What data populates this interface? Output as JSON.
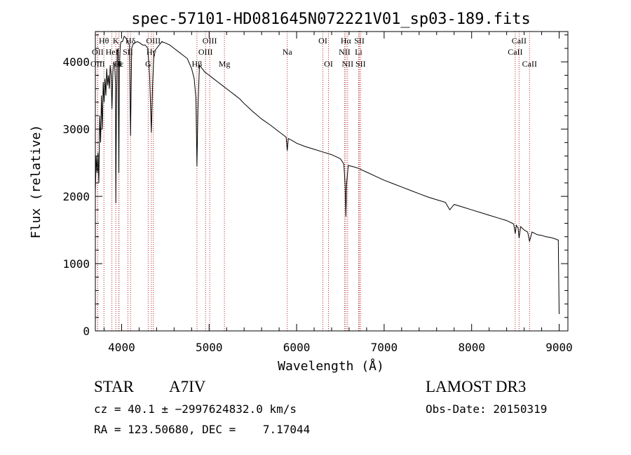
{
  "chart_data": {
    "type": "line",
    "title": "spec-57101-HD081645N072221V01_sp03-189.fits",
    "xlabel": "Wavelength (Å)",
    "ylabel": "Flux (relative)",
    "xlim": [
      3700,
      9100
    ],
    "ylim": [
      0,
      4450
    ],
    "x_ticks": [
      4000,
      5000,
      6000,
      7000,
      8000,
      9000
    ],
    "x_tick_labels": [
      "4000",
      "5000",
      "6000",
      "7000",
      "8000",
      "9000"
    ],
    "y_ticks": [
      0,
      1000,
      2000,
      3000,
      4000
    ],
    "y_tick_labels": [
      "0",
      "1000",
      "2000",
      "3000",
      "4000"
    ],
    "grid": false,
    "series": [
      {
        "name": "flux",
        "x": [
          3700,
          3710,
          3720,
          3730,
          3740,
          3750,
          3760,
          3770,
          3780,
          3790,
          3800,
          3810,
          3820,
          3830,
          3840,
          3850,
          3860,
          3870,
          3880,
          3890,
          3900,
          3910,
          3920,
          3930,
          3934,
          3940,
          3950,
          3960,
          3968,
          3975,
          3985,
          3995,
          4010,
          4030,
          4050,
          4070,
          4090,
          4102,
          4115,
          4130,
          4150,
          4180,
          4210,
          4240,
          4270,
          4300,
          4320,
          4340,
          4355,
          4370,
          4400,
          4430,
          4460,
          4500,
          4550,
          4600,
          4650,
          4700,
          4750,
          4800,
          4830,
          4850,
          4861,
          4872,
          4890,
          4920,
          4950,
          5000,
          5050,
          5100,
          5150,
          5200,
          5250,
          5300,
          5350,
          5400,
          5450,
          5500,
          5600,
          5700,
          5800,
          5880,
          5893,
          5905,
          5950,
          6000,
          6100,
          6200,
          6300,
          6400,
          6500,
          6540,
          6555,
          6563,
          6572,
          6590,
          6650,
          6700,
          6800,
          6900,
          7000,
          7100,
          7200,
          7300,
          7400,
          7500,
          7600,
          7700,
          7750,
          7800,
          7900,
          8000,
          8100,
          8200,
          8300,
          8400,
          8480,
          8498,
          8510,
          8530,
          8542,
          8560,
          8600,
          8640,
          8662,
          8690,
          8750,
          8800,
          8850,
          8900,
          8950,
          8990,
          9000
        ],
        "y": [
          2050,
          2600,
          2350,
          2650,
          2200,
          3200,
          2800,
          3500,
          3000,
          3700,
          3400,
          3750,
          3500,
          3900,
          3650,
          3800,
          3600,
          3950,
          3800,
          3300,
          3850,
          4000,
          3950,
          3700,
          1900,
          3200,
          4150,
          4200,
          2350,
          3900,
          4250,
          4300,
          4300,
          4380,
          4350,
          4300,
          4250,
          2900,
          4200,
          4260,
          4280,
          4300,
          4280,
          4250,
          4250,
          4200,
          3800,
          2950,
          3700,
          4150,
          4200,
          4250,
          4300,
          4280,
          4250,
          4200,
          4150,
          4100,
          4050,
          3900,
          3750,
          3450,
          2450,
          3300,
          3950,
          3900,
          3850,
          3800,
          3750,
          3700,
          3650,
          3600,
          3550,
          3500,
          3450,
          3380,
          3320,
          3260,
          3150,
          3060,
          2960,
          2880,
          2680,
          2860,
          2830,
          2790,
          2740,
          2700,
          2660,
          2620,
          2560,
          2480,
          2150,
          1700,
          2200,
          2460,
          2440,
          2420,
          2360,
          2300,
          2240,
          2190,
          2140,
          2090,
          2040,
          1990,
          1950,
          1910,
          1800,
          1880,
          1840,
          1800,
          1760,
          1720,
          1680,
          1640,
          1590,
          1450,
          1570,
          1530,
          1380,
          1550,
          1500,
          1470,
          1330,
          1470,
          1430,
          1420,
          1400,
          1390,
          1370,
          1350,
          250
        ]
      }
    ],
    "line_markers": [
      {
        "label": "Hθ",
        "x": 3798,
        "row": 1
      },
      {
        "label": "OII",
        "x": 3727,
        "row": 2
      },
      {
        "label": "OIII",
        "x": 3727,
        "row": 3
      },
      {
        "label": "K",
        "x": 3934,
        "row": 1
      },
      {
        "label": "HeI",
        "x": 3889,
        "row": 2
      },
      {
        "label": "Hε",
        "x": 3970,
        "row": 3
      },
      {
        "label": "Hδ",
        "x": 4102,
        "row": 1
      },
      {
        "label": "SII",
        "x": 4072,
        "row": 2
      },
      {
        "label": "H",
        "x": 3968,
        "row": 3
      },
      {
        "label": "OIII",
        "x": 4363,
        "row": 1
      },
      {
        "label": "Hγ",
        "x": 4340,
        "row": 2
      },
      {
        "label": "G",
        "x": 4304,
        "row": 3
      },
      {
        "label": "OIII",
        "x": 5007,
        "row": 1
      },
      {
        "label": "OIII",
        "x": 4959,
        "row": 2
      },
      {
        "label": "Hβ",
        "x": 4861,
        "row": 3
      },
      {
        "label": "Mg",
        "x": 5175,
        "row": 3
      },
      {
        "label": "Na",
        "x": 5893,
        "row": 2
      },
      {
        "label": "OI",
        "x": 6300,
        "row": 1
      },
      {
        "label": "OI",
        "x": 6364,
        "row": 3
      },
      {
        "label": "Hα",
        "x": 6563,
        "row": 1
      },
      {
        "label": "SII",
        "x": 6717,
        "row": 1
      },
      {
        "label": "NII",
        "x": 6548,
        "row": 2
      },
      {
        "label": "Li",
        "x": 6708,
        "row": 2
      },
      {
        "label": "NII",
        "x": 6583,
        "row": 3
      },
      {
        "label": "SII",
        "x": 6731,
        "row": 3
      },
      {
        "label": "CaII",
        "x": 8542,
        "row": 1
      },
      {
        "label": "CaII",
        "x": 8498,
        "row": 2
      },
      {
        "label": "CaII",
        "x": 8662,
        "row": 3
      }
    ]
  },
  "info": {
    "object_type": "STAR",
    "subclass": "A7IV",
    "survey": "LAMOST DR3",
    "redshift_line": "cz = 40.1 ± −2997624832.0 km/s",
    "obs_date": "Obs-Date: 20150319",
    "coords": "RA = 123.50680, DEC =    7.17044"
  }
}
